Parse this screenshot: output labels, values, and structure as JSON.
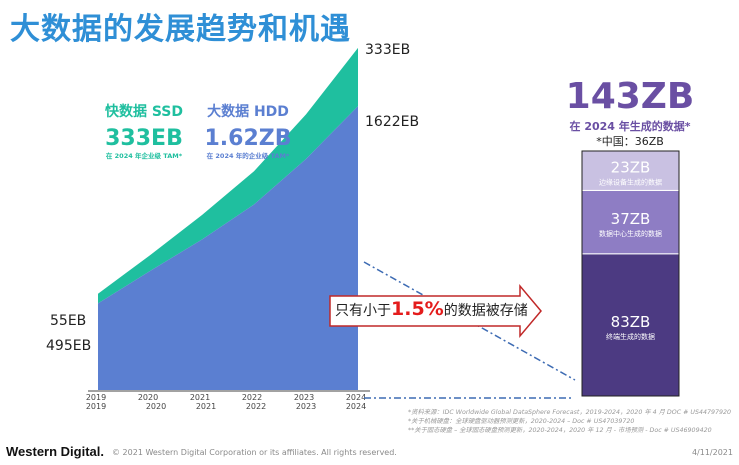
{
  "page": {
    "title": "大数据的发展趋势和机遇",
    "footer_logo": "Western Digital.",
    "copyright": "© 2021 Western Digital Corporation or its affiliates. All rights reserved.",
    "date": "4/11/2021",
    "sources": [
      "*资料来源：IDC Worldwide Global DataSphere Forecast，2019-2024，2020 年 4 月 DOC # US44797920",
      "*关于机械硬盘：全球硬盘驱动器预测更新，2020-2024 – Doc # US47039720",
      "**关于固态硬盘 – 全球固态硬盘预测更新，2020-2024，2020 年 12 月 - 市场预测 - Doc # US46909420"
    ],
    "arrow": {
      "before": "只有小于",
      "highlight": "1.5%",
      "after": "的数据被存储"
    }
  },
  "chart_data": [
    {
      "type": "area",
      "x": [
        2019,
        2020,
        2021,
        2022,
        2023,
        2024
      ],
      "series": [
        {
          "name": "大数据 HDD",
          "values": [
            495,
            680,
            860,
            1060,
            1320,
            1622
          ],
          "color": "#5b7fd1"
        },
        {
          "name": "快数据 SSD",
          "values": [
            55,
            90,
            140,
            190,
            255,
            333
          ],
          "color": "#1fbf9f"
        }
      ],
      "xlabel": "",
      "ylabel": "",
      "ylim": [
        0,
        2000
      ],
      "end_labels": {
        "start_top": "55EB",
        "start_bottom": "495EB",
        "end_top": "333EB",
        "end_bottom": "1622EB"
      },
      "x_tick_labels_upper": [
        "2019",
        "2020",
        "2021",
        "2022",
        "2023",
        "2024"
      ],
      "x_tick_labels_lower": [
        "2019",
        "2020",
        "2021",
        "2022",
        "2023",
        "2024"
      ],
      "callouts": [
        {
          "title": "快数据 SSD",
          "value": "333EB",
          "sub": "在 2024 年企业级 TAM*",
          "color": "#1fbf9f"
        },
        {
          "title": "大数据 HDD",
          "value": "1.62ZB",
          "sub": "在 2024 年的企业级 TAM*",
          "color": "#5b7fd1"
        }
      ]
    },
    {
      "type": "bar",
      "categories": [
        "终端生成的数据",
        "数据中心生成的数据",
        "边缘设备生成的数据"
      ],
      "values": [
        83,
        37,
        23
      ],
      "value_labels": [
        "83ZB",
        "37ZB",
        "23ZB"
      ],
      "colors": [
        "#4c3a82",
        "#8e7dc4",
        "#c9c1e2"
      ],
      "total_label": "143ZB",
      "total_sub": "在 2024 年生成的数据*",
      "china_note": "*中国：36ZB",
      "total_color": "#6a4fa3"
    }
  ]
}
